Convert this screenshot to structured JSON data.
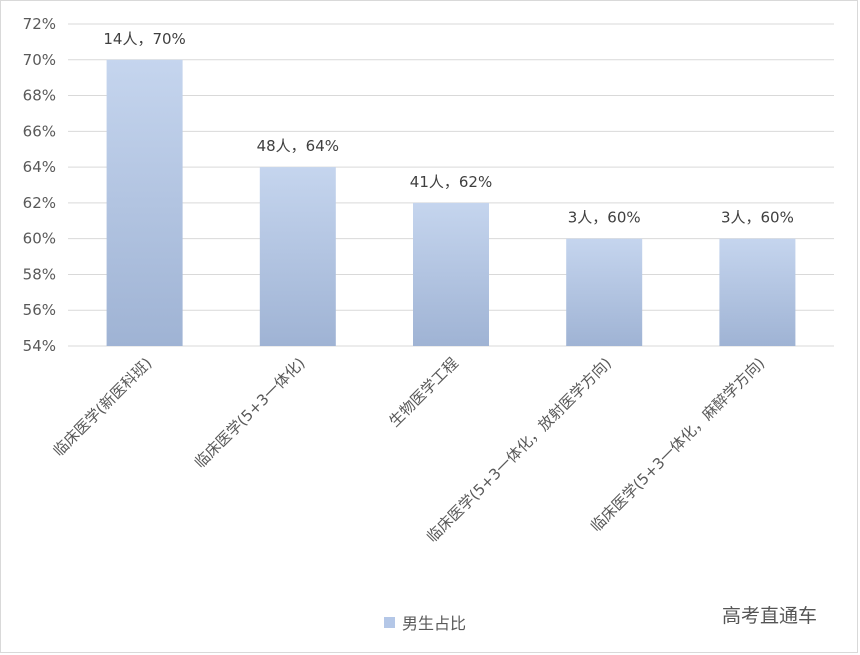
{
  "chart_data": {
    "type": "bar",
    "categories": [
      "临床医学(新医科班)",
      "临床医学(5+3一体化)",
      "生物医学工程",
      "临床医学(5+3一体化，放射医学方向)",
      "临床医学(5+3一体化，麻醉学方向)"
    ],
    "series": [
      {
        "name": "男生占比",
        "values": [
          70,
          64,
          62,
          60,
          60
        ],
        "data_labels": [
          "14人，70%",
          "48人，64%",
          "41人，62%",
          "3人，60%",
          "3人，60%"
        ]
      }
    ],
    "ylim": [
      54,
      72
    ],
    "yticks": [
      "54%",
      "56%",
      "58%",
      "60%",
      "62%",
      "64%",
      "66%",
      "68%",
      "70%",
      "72%"
    ],
    "grid": true,
    "legend_position": "bottom",
    "colors": {
      "bar_top": "#c5d5ee",
      "bar_bottom": "#9fb3d4",
      "grid": "#d9d9d9",
      "legend_marker": "#b4c7e7"
    }
  },
  "watermark": "高考直通车"
}
